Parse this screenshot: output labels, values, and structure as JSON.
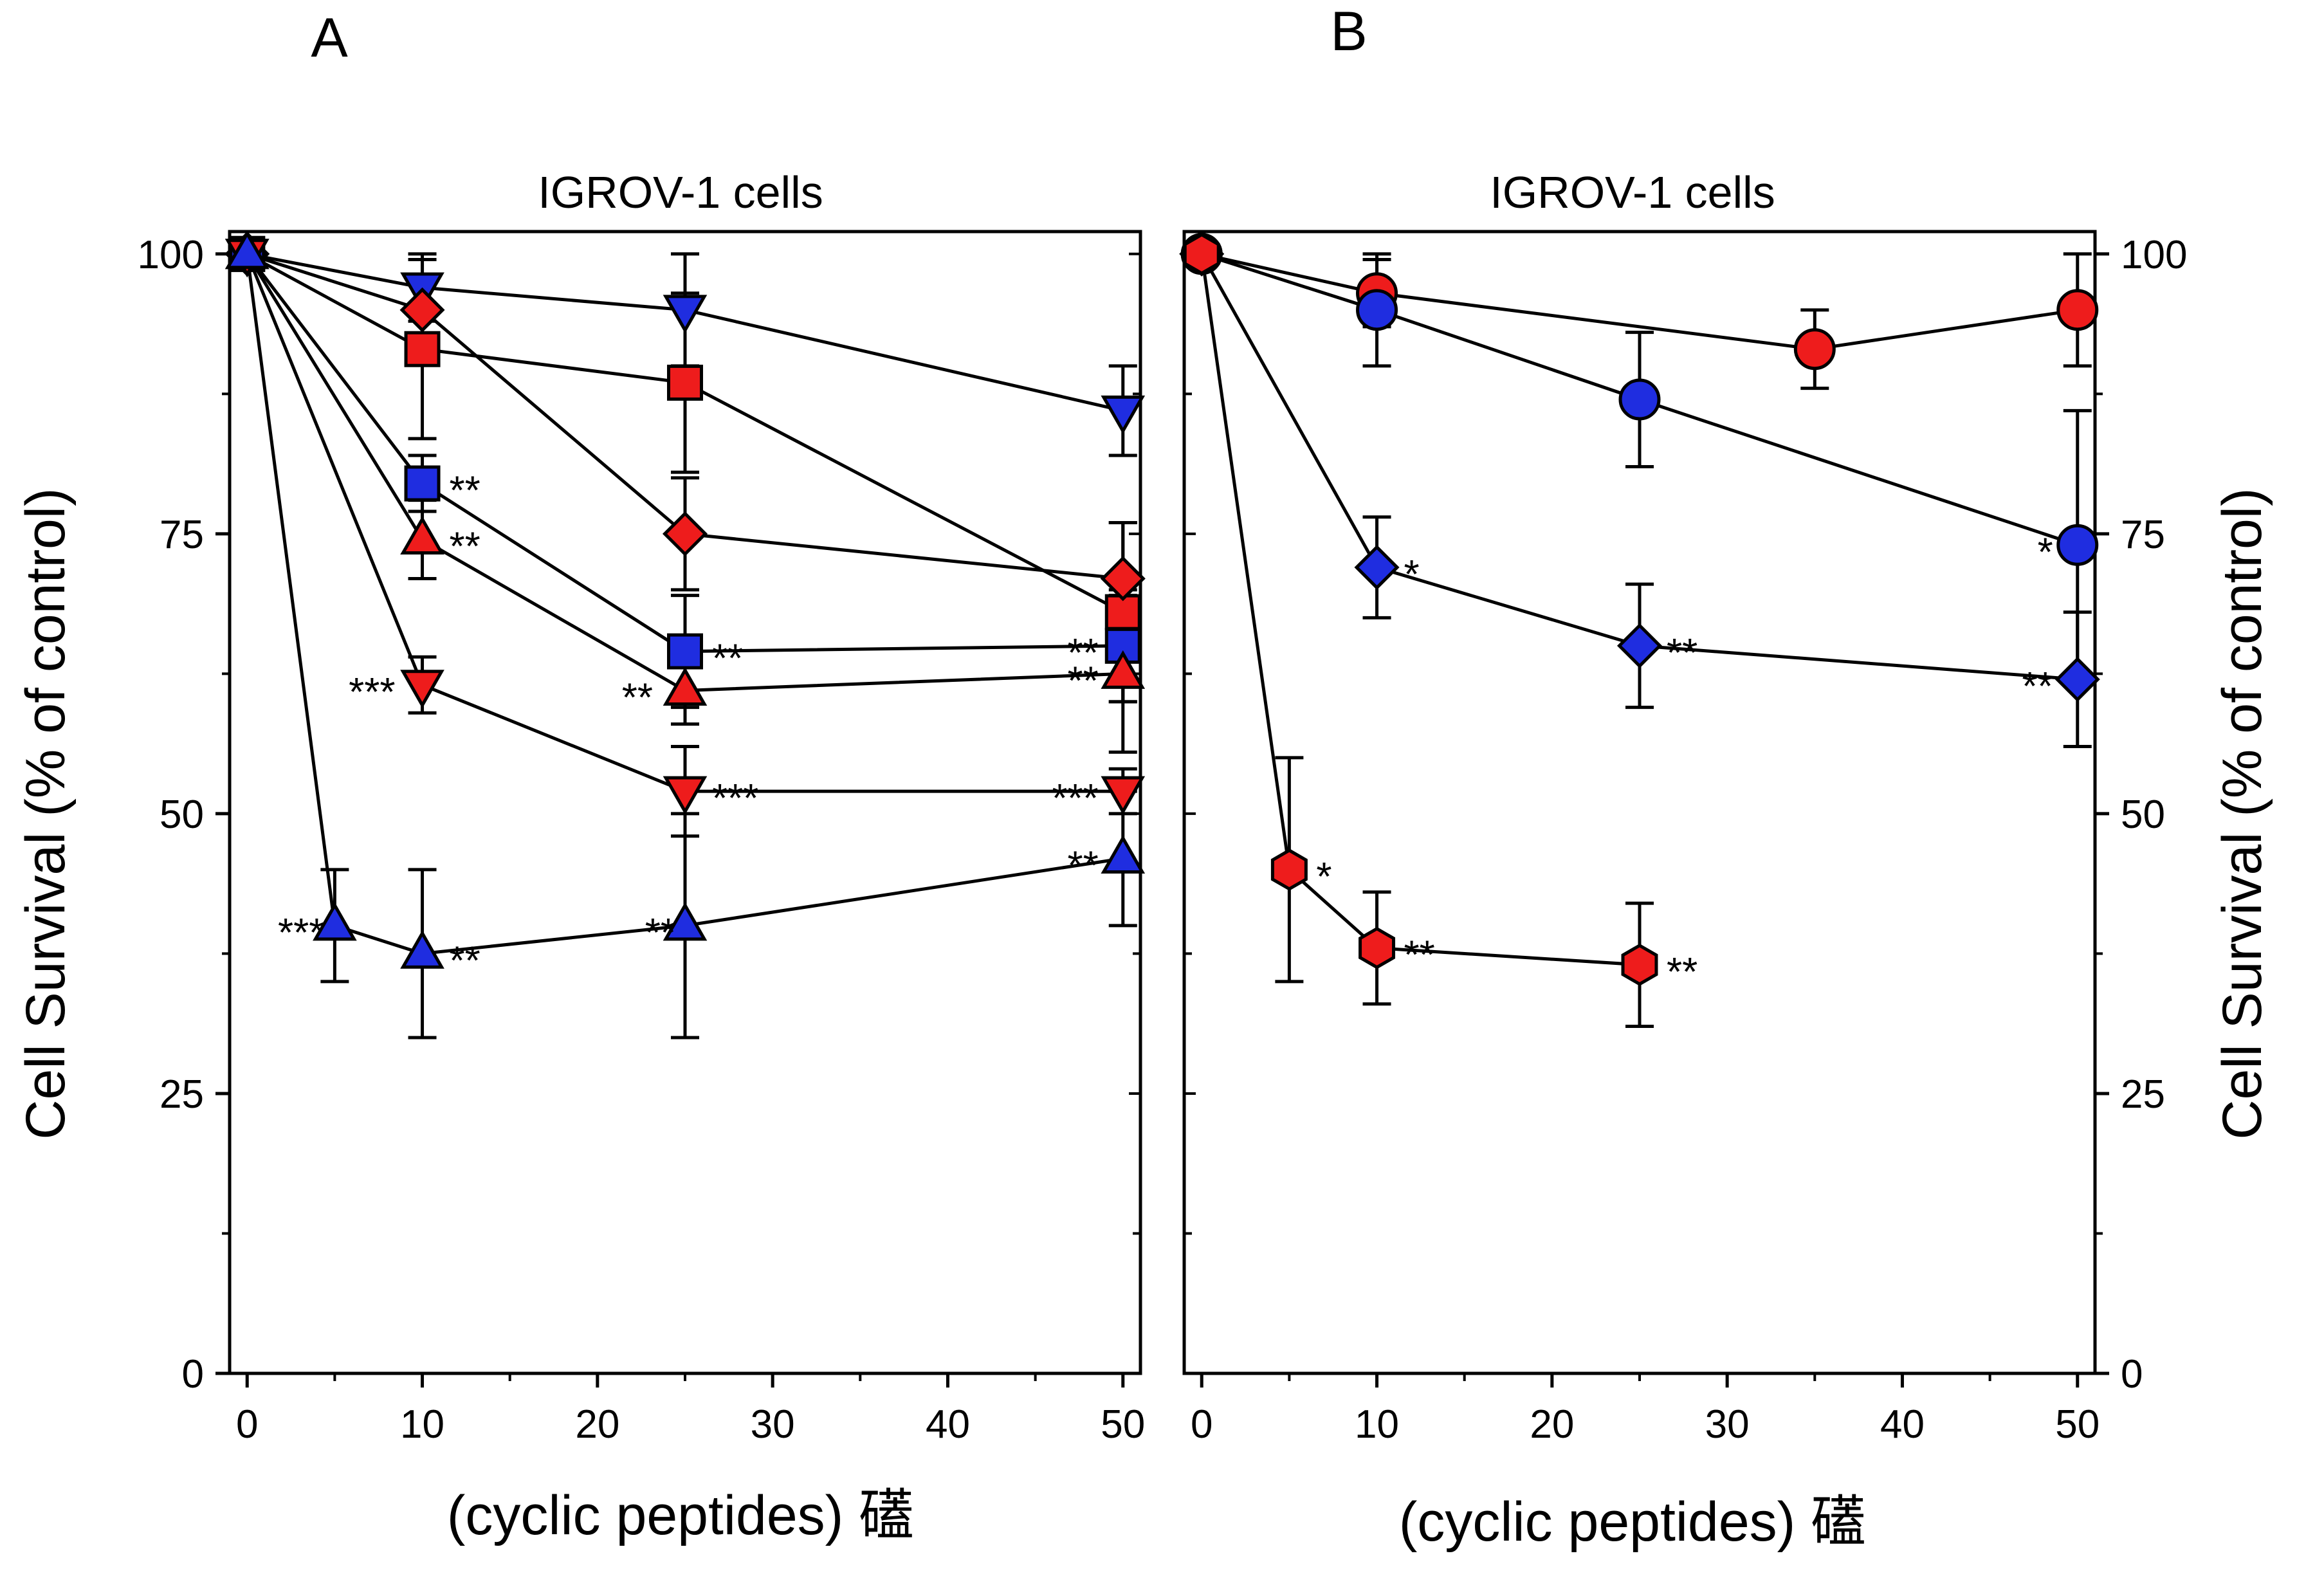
{
  "chart_data": [
    {
      "panel_label": "A",
      "type": "line",
      "title": "IGROV-1 cells",
      "xlabel": "(cyclic peptides) 礚",
      "ylabel": "Cell Survival (% of control)",
      "ylabel_side": "left",
      "xlim": [
        -1,
        51
      ],
      "ylim": [
        0,
        102
      ],
      "xticks": [
        0,
        10,
        20,
        30,
        40,
        50
      ],
      "yticks": [
        0,
        25,
        50,
        75,
        100
      ],
      "series": [
        {
          "name": "blue down-triangle",
          "marker": "triangle-down",
          "color": "#1f2de0",
          "points": [
            {
              "x": 0,
              "y": 100,
              "err": 0
            },
            {
              "x": 10,
              "y": 97,
              "err": 3,
              "sig": ""
            },
            {
              "x": 25,
              "y": 95,
              "err": 5,
              "sig": ""
            },
            {
              "x": 50,
              "y": 86,
              "err": 4,
              "sig": ""
            }
          ]
        },
        {
          "name": "red square",
          "marker": "square",
          "color": "#ee1c1c",
          "points": [
            {
              "x": 0,
              "y": 100,
              "err": 0
            },
            {
              "x": 10,
              "y": 91.5,
              "err": 8,
              "sig": ""
            },
            {
              "x": 25,
              "y": 88.5,
              "err": 8,
              "sig": ""
            },
            {
              "x": 50,
              "y": 68,
              "err": 8,
              "sig": ""
            }
          ]
        },
        {
          "name": "red diamond",
          "marker": "diamond",
          "color": "#ee1c1c",
          "points": [
            {
              "x": 0,
              "y": 100,
              "err": 0
            },
            {
              "x": 10,
              "y": 95,
              "err": 3,
              "sig": ""
            },
            {
              "x": 25,
              "y": 75,
              "err": 5,
              "sig": ""
            },
            {
              "x": 50,
              "y": 71,
              "err": 5,
              "sig": ""
            }
          ]
        },
        {
          "name": "blue square",
          "marker": "square",
          "color": "#1f2de0",
          "points": [
            {
              "x": 0,
              "y": 100,
              "err": 0
            },
            {
              "x": 10,
              "y": 79.5,
              "err": 2.5,
              "sig": "**"
            },
            {
              "x": 25,
              "y": 64.5,
              "err": 5,
              "sig": "**"
            },
            {
              "x": 50,
              "y": 65,
              "err": 5,
              "sig": "**"
            }
          ]
        },
        {
          "name": "red up-triangle",
          "marker": "triangle-up",
          "color": "#ee1c1c",
          "points": [
            {
              "x": 0,
              "y": 100,
              "err": 0
            },
            {
              "x": 10,
              "y": 74.5,
              "err": 3.5,
              "sig": "**"
            },
            {
              "x": 25,
              "y": 61,
              "err": 3,
              "sig": "**"
            },
            {
              "x": 50,
              "y": 62.5,
              "err": 7,
              "sig": "**"
            }
          ]
        },
        {
          "name": "red down-triangle",
          "marker": "triangle-down",
          "color": "#ee1c1c",
          "points": [
            {
              "x": 0,
              "y": 100,
              "err": 0
            },
            {
              "x": 10,
              "y": 61.5,
              "err": 2.5,
              "sig": "***"
            },
            {
              "x": 25,
              "y": 52,
              "err": 4,
              "sig": "***"
            },
            {
              "x": 50,
              "y": 52,
              "err": 2,
              "sig": "***"
            }
          ]
        },
        {
          "name": "blue up-triangle",
          "marker": "triangle-up",
          "color": "#1f2de0",
          "points": [
            {
              "x": 0,
              "y": 100,
              "err": 0
            },
            {
              "x": 5,
              "y": 40,
              "err": 5,
              "sig": "***"
            },
            {
              "x": 10,
              "y": 37.5,
              "err": 7.5,
              "sig": "**"
            },
            {
              "x": 25,
              "y": 40,
              "err": 10,
              "sig": "**"
            },
            {
              "x": 50,
              "y": 46,
              "err": 6,
              "sig": "**"
            }
          ]
        }
      ]
    },
    {
      "panel_label": "B",
      "type": "line",
      "title": "IGROV-1 cells",
      "xlabel": "(cyclic peptides) 礚",
      "ylabel": "Cell Survival (% of control)",
      "ylabel_side": "right",
      "xlim": [
        -1,
        51
      ],
      "ylim": [
        0,
        102
      ],
      "xticks": [
        0,
        10,
        20,
        30,
        40,
        50
      ],
      "yticks": [
        0,
        25,
        50,
        75,
        100
      ],
      "series": [
        {
          "name": "red circle",
          "marker": "circle",
          "color": "#ee1c1c",
          "points": [
            {
              "x": 0,
              "y": 100,
              "err": 0
            },
            {
              "x": 10,
              "y": 96.5,
              "err": 3,
              "sig": ""
            },
            {
              "x": 35,
              "y": 91.5,
              "err": 3.5,
              "sig": ""
            },
            {
              "x": 50,
              "y": 95,
              "err": 5,
              "sig": ""
            }
          ]
        },
        {
          "name": "blue circle",
          "marker": "circle",
          "color": "#1f2de0",
          "points": [
            {
              "x": 0,
              "y": 100,
              "err": 0
            },
            {
              "x": 10,
              "y": 95,
              "err": 5,
              "sig": ""
            },
            {
              "x": 25,
              "y": 87,
              "err": 6,
              "sig": ""
            },
            {
              "x": 50,
              "y": 74,
              "err": 12,
              "sig": "*"
            }
          ]
        },
        {
          "name": "blue diamond",
          "marker": "diamond",
          "color": "#1f2de0",
          "points": [
            {
              "x": 0,
              "y": 100,
              "err": 0
            },
            {
              "x": 10,
              "y": 72,
              "err": 4.5,
              "sig": "*"
            },
            {
              "x": 25,
              "y": 65,
              "err": 5.5,
              "sig": "**"
            },
            {
              "x": 50,
              "y": 62,
              "err": 6,
              "sig": "**"
            }
          ]
        },
        {
          "name": "red hexagon",
          "marker": "hexagon",
          "color": "#ee1c1c",
          "points": [
            {
              "x": 0,
              "y": 100,
              "err": 0
            },
            {
              "x": 5,
              "y": 45,
              "err": 10,
              "sig": "*"
            },
            {
              "x": 10,
              "y": 38,
              "err": 5,
              "sig": "**"
            },
            {
              "x": 25,
              "y": 36.5,
              "err": 5.5,
              "sig": "**"
            }
          ]
        }
      ]
    }
  ]
}
